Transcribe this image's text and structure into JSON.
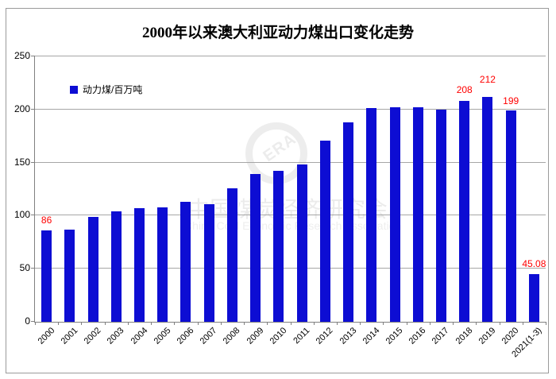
{
  "title": "2000年以来澳大利亚动力煤出口变化走势",
  "legend": {
    "label": "动力煤/百万吨",
    "swatch_color": "#0d0dd3"
  },
  "watermark": {
    "ring_text": "ERA",
    "cn_text": "中国煤炭经济研究会",
    "en_text": "China Coal Economic Research Association"
  },
  "colors": {
    "bar": "#0d0dd3",
    "grid": "#a6a6a6",
    "axis": "#808080",
    "frame": "#9a9a9a",
    "data_label": "#ff0000"
  },
  "chart_data": {
    "type": "bar",
    "title": "2000年以来澳大利亚动力煤出口变化走势",
    "ylabel": "动力煤/百万吨",
    "categories": [
      "2000",
      "2001",
      "2002",
      "2003",
      "2004",
      "2005",
      "2006",
      "2007",
      "2008",
      "2009",
      "2010",
      "2011",
      "2012",
      "2013",
      "2014",
      "2015",
      "2016",
      "2017",
      "2018",
      "2019",
      "2020",
      "2021(1-3)"
    ],
    "values": [
      86,
      87,
      99,
      104,
      107,
      108,
      113,
      111,
      126,
      139,
      142,
      148,
      171,
      188,
      201,
      202,
      202,
      200,
      208,
      212,
      199,
      45.08
    ],
    "data_labels": [
      "86",
      "",
      "",
      "",
      "",
      "",
      "",
      "",
      "",
      "",
      "",
      "",
      "",
      "",
      "",
      "",
      "",
      "",
      "208",
      "212",
      "199",
      "45.08"
    ],
    "ylim": [
      0,
      250
    ],
    "yticks": [
      0,
      50,
      100,
      150,
      200,
      250
    ],
    "grid": true,
    "legend_position": "top-left"
  }
}
